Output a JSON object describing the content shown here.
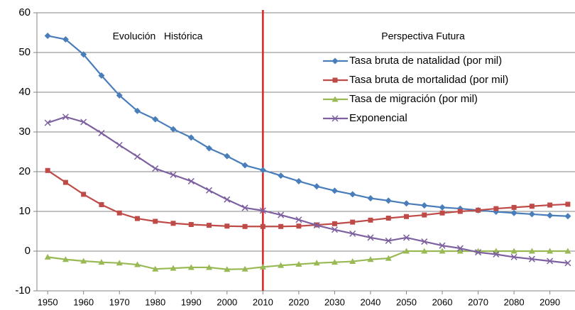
{
  "chart_data": {
    "type": "line",
    "annotations": [
      "Evolución   Histórica",
      "Perspectiva Futura"
    ],
    "x": [
      1950,
      1955,
      1960,
      1965,
      1970,
      1975,
      1980,
      1985,
      1990,
      1995,
      2000,
      2005,
      2010,
      2015,
      2020,
      2025,
      2030,
      2035,
      2040,
      2045,
      2050,
      2055,
      2060,
      2065,
      2070,
      2075,
      2080,
      2085,
      2090,
      2095
    ],
    "series": [
      {
        "name": "Tasa bruta de natalidad (por mil)",
        "color": "#4a7ebb",
        "marker": "diamond",
        "values": [
          54.2,
          53.3,
          49.5,
          44.2,
          39.2,
          35.3,
          33.2,
          30.7,
          28.6,
          25.9,
          23.9,
          21.6,
          20.4,
          19.0,
          17.6,
          16.3,
          15.2,
          14.3,
          13.3,
          12.7,
          12.0,
          11.5,
          11.0,
          10.7,
          10.3,
          9.9,
          9.6,
          9.3,
          9.0,
          8.8
        ]
      },
      {
        "name": "Tasa bruta de mortalidad (por mil)",
        "color": "#be4b48",
        "marker": "square",
        "values": [
          20.3,
          17.3,
          14.3,
          11.7,
          9.6,
          8.2,
          7.5,
          7.0,
          6.7,
          6.5,
          6.3,
          6.2,
          6.2,
          6.2,
          6.3,
          6.6,
          6.9,
          7.3,
          7.8,
          8.3,
          8.7,
          9.1,
          9.6,
          10.0,
          10.3,
          10.7,
          11.0,
          11.3,
          11.6,
          11.8
        ]
      },
      {
        "name": "Tasa de migración (por mil)",
        "color": "#98b954",
        "marker": "triangle",
        "values": [
          -1.5,
          -2.1,
          -2.5,
          -2.8,
          -3.0,
          -3.4,
          -4.5,
          -4.3,
          -4.1,
          -4.1,
          -4.6,
          -4.5,
          -4.0,
          -3.6,
          -3.3,
          -3.0,
          -2.8,
          -2.6,
          -2.1,
          -1.8,
          0,
          0,
          0,
          0,
          0,
          0,
          0,
          0,
          0,
          0
        ]
      },
      {
        "name": "Exponencial",
        "color": "#7d60a0",
        "marker": "x",
        "values": [
          32.3,
          33.8,
          32.5,
          29.7,
          26.7,
          23.8,
          20.8,
          19.2,
          17.6,
          15.3,
          13.0,
          10.9,
          10.2,
          9.1,
          7.9,
          6.5,
          5.4,
          4.4,
          3.4,
          2.6,
          3.4,
          2.4,
          1.4,
          0.7,
          -0.3,
          -0.8,
          -1.5,
          -2.0,
          -2.5,
          -3.0
        ]
      }
    ],
    "vline": 2010,
    "vline_color": "#e02020",
    "xlim": [
      1947,
      2097
    ],
    "xticks": [
      1950,
      1960,
      1970,
      1980,
      1990,
      2000,
      2010,
      2020,
      2030,
      2040,
      2050,
      2060,
      2070,
      2080,
      2090
    ],
    "ylim": [
      -10,
      60
    ],
    "yticks": [
      -10,
      0,
      10,
      20,
      30,
      40,
      50,
      60
    ],
    "grid": true
  }
}
